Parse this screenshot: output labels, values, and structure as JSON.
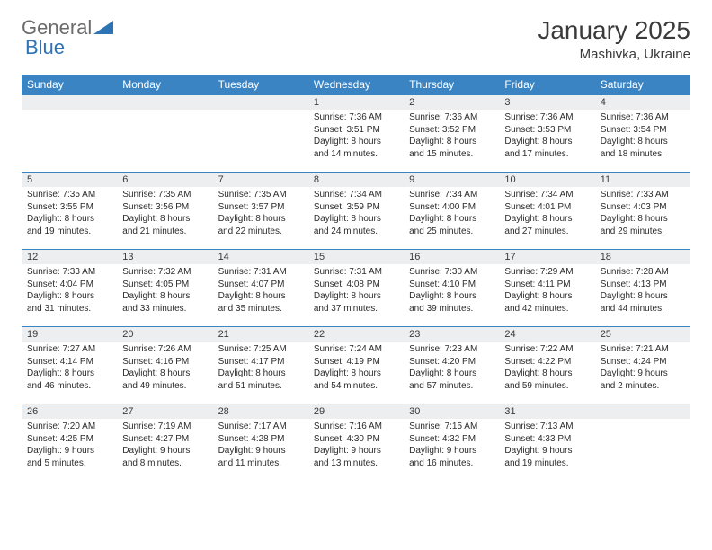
{
  "brand": {
    "name_gray": "General",
    "name_blue": "Blue"
  },
  "title": "January 2025",
  "location": "Mashivka, Ukraine",
  "colors": {
    "header_bg": "#3a84c4",
    "header_text": "#ffffff",
    "daynum_bg": "#eceef0",
    "cell_border": "#3a84c4",
    "text": "#2b2b2b",
    "logo_gray": "#6b6b6b",
    "logo_blue": "#2e74b5"
  },
  "fonts": {
    "title_size_pt": 21,
    "location_size_pt": 11,
    "header_size_pt": 9,
    "daynum_size_pt": 8,
    "body_size_pt": 7.5
  },
  "day_headers": [
    "Sunday",
    "Monday",
    "Tuesday",
    "Wednesday",
    "Thursday",
    "Friday",
    "Saturday"
  ],
  "weeks": [
    [
      {
        "day": "",
        "sunrise": "",
        "sunset": "",
        "daylight": ""
      },
      {
        "day": "",
        "sunrise": "",
        "sunset": "",
        "daylight": ""
      },
      {
        "day": "",
        "sunrise": "",
        "sunset": "",
        "daylight": ""
      },
      {
        "day": "1",
        "sunrise": "Sunrise: 7:36 AM",
        "sunset": "Sunset: 3:51 PM",
        "daylight": "Daylight: 8 hours and 14 minutes."
      },
      {
        "day": "2",
        "sunrise": "Sunrise: 7:36 AM",
        "sunset": "Sunset: 3:52 PM",
        "daylight": "Daylight: 8 hours and 15 minutes."
      },
      {
        "day": "3",
        "sunrise": "Sunrise: 7:36 AM",
        "sunset": "Sunset: 3:53 PM",
        "daylight": "Daylight: 8 hours and 17 minutes."
      },
      {
        "day": "4",
        "sunrise": "Sunrise: 7:36 AM",
        "sunset": "Sunset: 3:54 PM",
        "daylight": "Daylight: 8 hours and 18 minutes."
      }
    ],
    [
      {
        "day": "5",
        "sunrise": "Sunrise: 7:35 AM",
        "sunset": "Sunset: 3:55 PM",
        "daylight": "Daylight: 8 hours and 19 minutes."
      },
      {
        "day": "6",
        "sunrise": "Sunrise: 7:35 AM",
        "sunset": "Sunset: 3:56 PM",
        "daylight": "Daylight: 8 hours and 21 minutes."
      },
      {
        "day": "7",
        "sunrise": "Sunrise: 7:35 AM",
        "sunset": "Sunset: 3:57 PM",
        "daylight": "Daylight: 8 hours and 22 minutes."
      },
      {
        "day": "8",
        "sunrise": "Sunrise: 7:34 AM",
        "sunset": "Sunset: 3:59 PM",
        "daylight": "Daylight: 8 hours and 24 minutes."
      },
      {
        "day": "9",
        "sunrise": "Sunrise: 7:34 AM",
        "sunset": "Sunset: 4:00 PM",
        "daylight": "Daylight: 8 hours and 25 minutes."
      },
      {
        "day": "10",
        "sunrise": "Sunrise: 7:34 AM",
        "sunset": "Sunset: 4:01 PM",
        "daylight": "Daylight: 8 hours and 27 minutes."
      },
      {
        "day": "11",
        "sunrise": "Sunrise: 7:33 AM",
        "sunset": "Sunset: 4:03 PM",
        "daylight": "Daylight: 8 hours and 29 minutes."
      }
    ],
    [
      {
        "day": "12",
        "sunrise": "Sunrise: 7:33 AM",
        "sunset": "Sunset: 4:04 PM",
        "daylight": "Daylight: 8 hours and 31 minutes."
      },
      {
        "day": "13",
        "sunrise": "Sunrise: 7:32 AM",
        "sunset": "Sunset: 4:05 PM",
        "daylight": "Daylight: 8 hours and 33 minutes."
      },
      {
        "day": "14",
        "sunrise": "Sunrise: 7:31 AM",
        "sunset": "Sunset: 4:07 PM",
        "daylight": "Daylight: 8 hours and 35 minutes."
      },
      {
        "day": "15",
        "sunrise": "Sunrise: 7:31 AM",
        "sunset": "Sunset: 4:08 PM",
        "daylight": "Daylight: 8 hours and 37 minutes."
      },
      {
        "day": "16",
        "sunrise": "Sunrise: 7:30 AM",
        "sunset": "Sunset: 4:10 PM",
        "daylight": "Daylight: 8 hours and 39 minutes."
      },
      {
        "day": "17",
        "sunrise": "Sunrise: 7:29 AM",
        "sunset": "Sunset: 4:11 PM",
        "daylight": "Daylight: 8 hours and 42 minutes."
      },
      {
        "day": "18",
        "sunrise": "Sunrise: 7:28 AM",
        "sunset": "Sunset: 4:13 PM",
        "daylight": "Daylight: 8 hours and 44 minutes."
      }
    ],
    [
      {
        "day": "19",
        "sunrise": "Sunrise: 7:27 AM",
        "sunset": "Sunset: 4:14 PM",
        "daylight": "Daylight: 8 hours and 46 minutes."
      },
      {
        "day": "20",
        "sunrise": "Sunrise: 7:26 AM",
        "sunset": "Sunset: 4:16 PM",
        "daylight": "Daylight: 8 hours and 49 minutes."
      },
      {
        "day": "21",
        "sunrise": "Sunrise: 7:25 AM",
        "sunset": "Sunset: 4:17 PM",
        "daylight": "Daylight: 8 hours and 51 minutes."
      },
      {
        "day": "22",
        "sunrise": "Sunrise: 7:24 AM",
        "sunset": "Sunset: 4:19 PM",
        "daylight": "Daylight: 8 hours and 54 minutes."
      },
      {
        "day": "23",
        "sunrise": "Sunrise: 7:23 AM",
        "sunset": "Sunset: 4:20 PM",
        "daylight": "Daylight: 8 hours and 57 minutes."
      },
      {
        "day": "24",
        "sunrise": "Sunrise: 7:22 AM",
        "sunset": "Sunset: 4:22 PM",
        "daylight": "Daylight: 8 hours and 59 minutes."
      },
      {
        "day": "25",
        "sunrise": "Sunrise: 7:21 AM",
        "sunset": "Sunset: 4:24 PM",
        "daylight": "Daylight: 9 hours and 2 minutes."
      }
    ],
    [
      {
        "day": "26",
        "sunrise": "Sunrise: 7:20 AM",
        "sunset": "Sunset: 4:25 PM",
        "daylight": "Daylight: 9 hours and 5 minutes."
      },
      {
        "day": "27",
        "sunrise": "Sunrise: 7:19 AM",
        "sunset": "Sunset: 4:27 PM",
        "daylight": "Daylight: 9 hours and 8 minutes."
      },
      {
        "day": "28",
        "sunrise": "Sunrise: 7:17 AM",
        "sunset": "Sunset: 4:28 PM",
        "daylight": "Daylight: 9 hours and 11 minutes."
      },
      {
        "day": "29",
        "sunrise": "Sunrise: 7:16 AM",
        "sunset": "Sunset: 4:30 PM",
        "daylight": "Daylight: 9 hours and 13 minutes."
      },
      {
        "day": "30",
        "sunrise": "Sunrise: 7:15 AM",
        "sunset": "Sunset: 4:32 PM",
        "daylight": "Daylight: 9 hours and 16 minutes."
      },
      {
        "day": "31",
        "sunrise": "Sunrise: 7:13 AM",
        "sunset": "Sunset: 4:33 PM",
        "daylight": "Daylight: 9 hours and 19 minutes."
      },
      {
        "day": "",
        "sunrise": "",
        "sunset": "",
        "daylight": ""
      }
    ]
  ]
}
